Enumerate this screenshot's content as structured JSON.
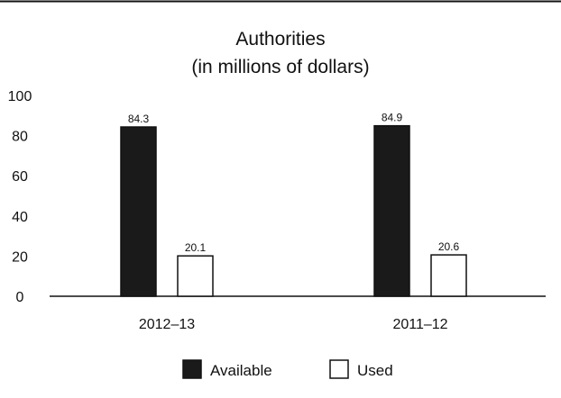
{
  "chart_data": {
    "type": "bar",
    "title": "Authorities",
    "subtitle": "(in millions of dollars)",
    "categories": [
      "2012–13",
      "2011–12"
    ],
    "series": [
      {
        "name": "Available",
        "values": [
          84.3,
          84.9
        ],
        "color": "#1a1a1a"
      },
      {
        "name": "Used",
        "values": [
          20.1,
          20.6
        ],
        "color": "#ffffff"
      }
    ],
    "value_labels": [
      [
        "84.3",
        "84.9"
      ],
      [
        "20.1",
        "20.6"
      ]
    ],
    "y_ticks": [
      "0",
      "20",
      "40",
      "60",
      "80",
      "100"
    ],
    "ylim": [
      0,
      100
    ],
    "xlabel": "",
    "ylabel": "",
    "grid": false,
    "legend_position": "bottom"
  }
}
